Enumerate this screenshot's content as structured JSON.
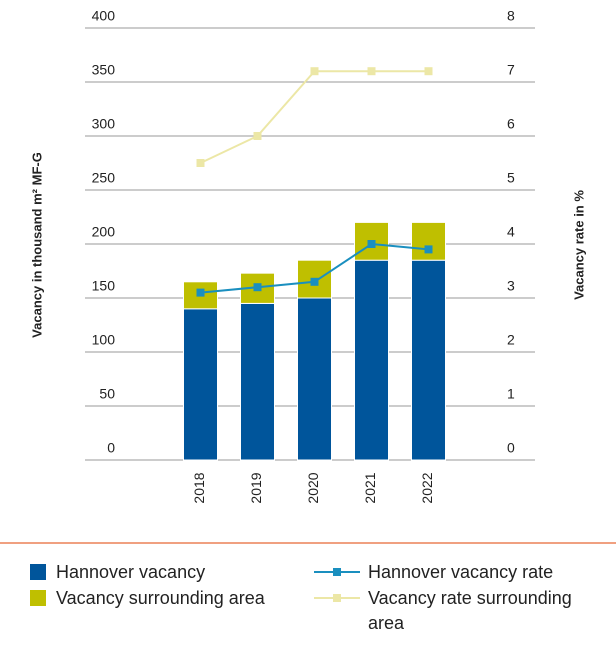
{
  "chart_data": {
    "type": "bar",
    "categories": [
      "2018",
      "2019",
      "2020",
      "2021",
      "2022"
    ],
    "y_label": "Vacancy in thousand m² MF-G",
    "y2_label": "Vacancy rate in %",
    "ylim": [
      0,
      400
    ],
    "yticks": [
      0,
      50,
      100,
      150,
      200,
      250,
      300,
      350,
      400
    ],
    "y2lim": [
      0,
      8
    ],
    "y2ticks": [
      0,
      1,
      2,
      3,
      4,
      5,
      6,
      7,
      8
    ],
    "grid": true,
    "series": [
      {
        "name": "Hannover vacancy",
        "type": "bar",
        "color": "#00559b",
        "values": [
          140,
          145,
          150,
          185,
          185
        ]
      },
      {
        "name": "Vacancy surrounding area",
        "type": "bar",
        "color": "#bfbf00",
        "values": [
          25,
          28,
          35,
          35,
          35
        ]
      },
      {
        "name": "Hannover vacancy rate",
        "type": "line",
        "axis": "y2",
        "color": "#1a8fbf",
        "values": [
          3.1,
          3.2,
          3.3,
          4.0,
          3.9
        ]
      },
      {
        "name": "Vacancy rate surrounding area",
        "type": "line",
        "axis": "y2",
        "color": "#ece7a6",
        "values": [
          5.5,
          6.0,
          7.2,
          7.2,
          7.2
        ]
      }
    ]
  }
}
